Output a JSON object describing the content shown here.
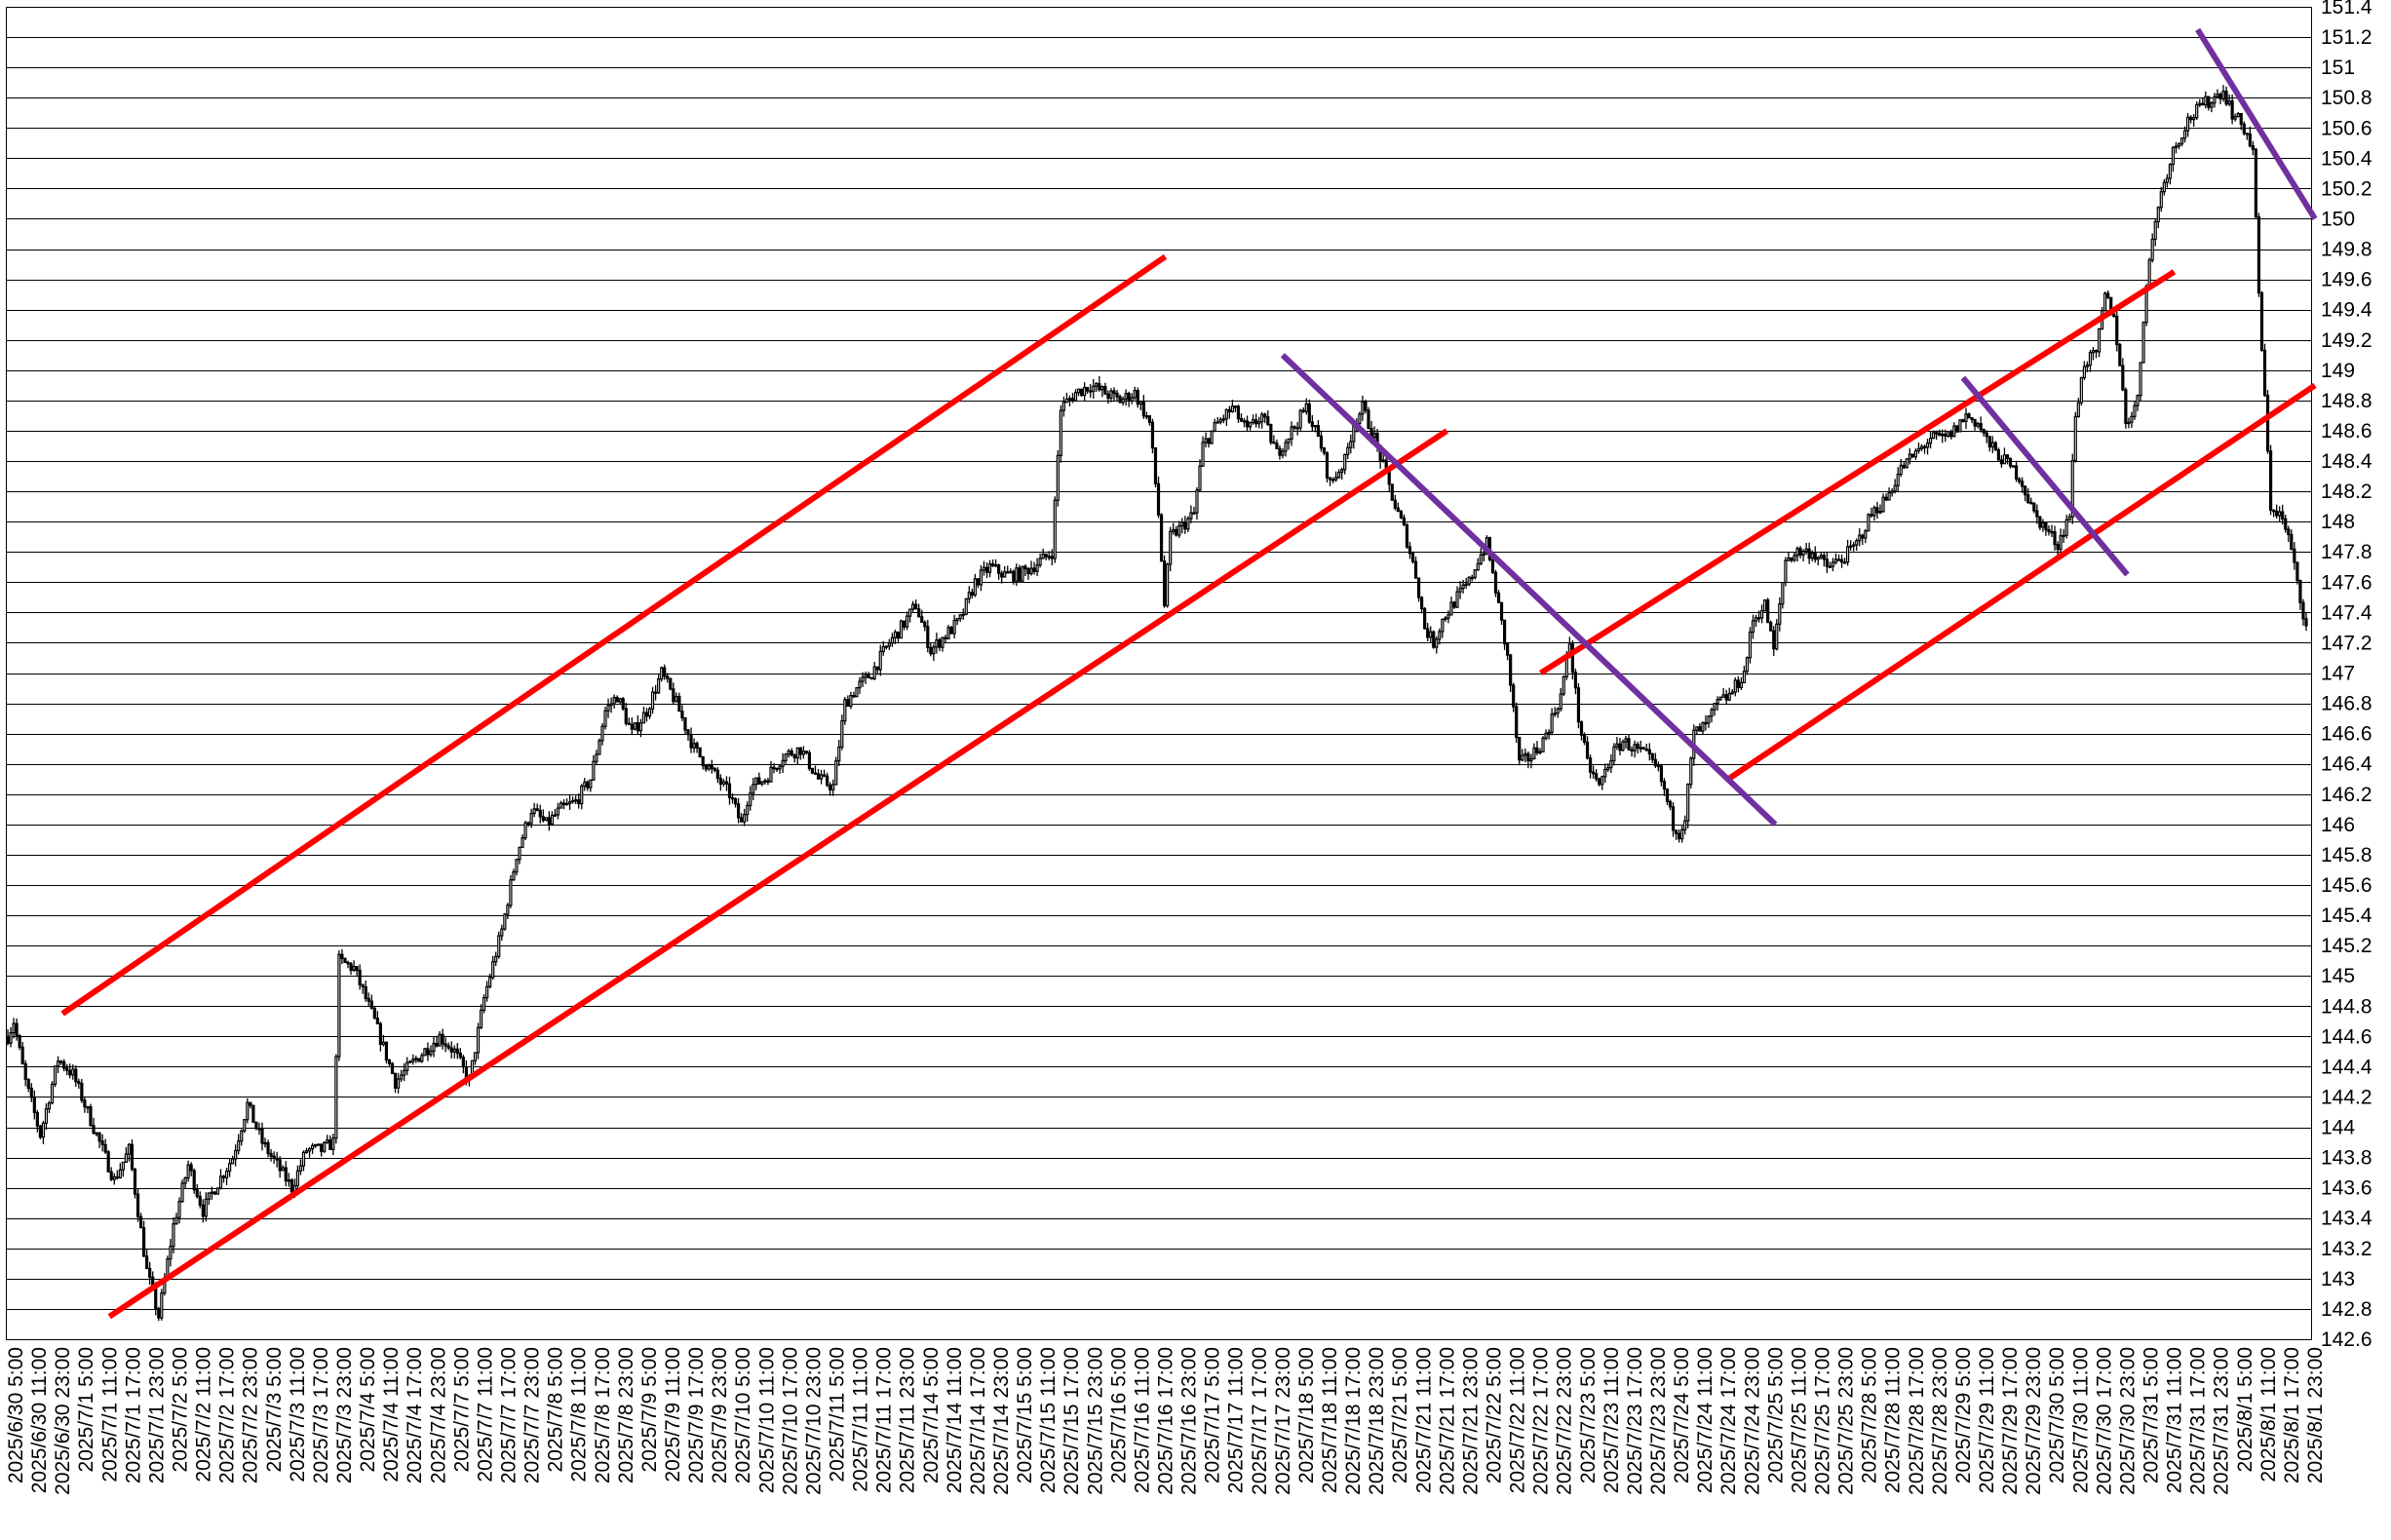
{
  "chart_data": {
    "type": "candlestick",
    "title": "",
    "xlabel": "",
    "ylabel": "",
    "ylim": [
      142.6,
      151.4
    ],
    "y_ticks": [
      "142.6",
      "142.8",
      "143",
      "143.2",
      "143.4",
      "143.6",
      "143.8",
      "144",
      "144.2",
      "144.4",
      "144.6",
      "144.8",
      "145",
      "145.2",
      "145.4",
      "145.6",
      "145.8",
      "146",
      "146.2",
      "146.4",
      "146.6",
      "146.8",
      "147",
      "147.2",
      "147.4",
      "147.6",
      "147.8",
      "148",
      "148.2",
      "148.4",
      "148.6",
      "148.8",
      "149",
      "149.2",
      "149.4",
      "149.6",
      "149.8",
      "150",
      "150.2",
      "150.4",
      "150.6",
      "150.8",
      "151",
      "151.2",
      "151.4"
    ],
    "grid": "horizontal",
    "x_ticks": [
      "2025/6/30 5:00",
      "2025/6/30 11:00",
      "2025/6/30 23:00",
      "2025/7/1 5:00",
      "2025/7/1 11:00",
      "2025/7/1 17:00",
      "2025/7/1 23:00",
      "2025/7/2 5:00",
      "2025/7/2 11:00",
      "2025/7/2 17:00",
      "2025/7/2 23:00",
      "2025/7/3 5:00",
      "2025/7/3 11:00",
      "2025/7/3 17:00",
      "2025/7/3 23:00",
      "2025/7/4 5:00",
      "2025/7/4 11:00",
      "2025/7/4 17:00",
      "2025/7/4 23:00",
      "2025/7/7 5:00",
      "2025/7/7 11:00",
      "2025/7/7 17:00",
      "2025/7/7 23:00",
      "2025/7/8 5:00",
      "2025/7/8 11:00",
      "2025/7/8 17:00",
      "2025/7/8 23:00",
      "2025/7/9 5:00",
      "2025/7/9 11:00",
      "2025/7/9 17:00",
      "2025/7/9 23:00",
      "2025/7/10 5:00",
      "2025/7/10 11:00",
      "2025/7/10 17:00",
      "2025/7/10 23:00",
      "2025/7/11 5:00",
      "2025/7/11 11:00",
      "2025/7/11 17:00",
      "2025/7/11 23:00",
      "2025/7/14 5:00",
      "2025/7/14 11:00",
      "2025/7/14 17:00",
      "2025/7/14 23:00",
      "2025/7/15 5:00",
      "2025/7/15 11:00",
      "2025/7/15 17:00",
      "2025/7/15 23:00",
      "2025/7/16 5:00",
      "2025/7/16 11:00",
      "2025/7/16 17:00",
      "2025/7/16 23:00",
      "2025/7/17 5:00",
      "2025/7/17 11:00",
      "2025/7/17 17:00",
      "2025/7/17 23:00",
      "2025/7/18 5:00",
      "2025/7/18 11:00",
      "2025/7/18 17:00",
      "2025/7/18 23:00",
      "2025/7/21 5:00",
      "2025/7/21 11:00",
      "2025/7/21 17:00",
      "2025/7/21 23:00",
      "2025/7/22 5:00",
      "2025/7/22 11:00",
      "2025/7/22 17:00",
      "2025/7/22 23:00",
      "2025/7/23 5:00",
      "2025/7/23 11:00",
      "2025/7/23 17:00",
      "2025/7/23 23:00",
      "2025/7/24 5:00",
      "2025/7/24 11:00",
      "2025/7/24 17:00",
      "2025/7/24 23:00",
      "2025/7/25 5:00",
      "2025/7/25 11:00",
      "2025/7/25 17:00",
      "2025/7/25 23:00",
      "2025/7/28 5:00",
      "2025/7/28 11:00",
      "2025/7/28 17:00",
      "2025/7/28 23:00",
      "2025/7/29 5:00",
      "2025/7/29 11:00",
      "2025/7/29 17:00",
      "2025/7/29 23:00",
      "2025/7/30 5:00",
      "2025/7/30 11:00",
      "2025/7/30 17:00",
      "2025/7/30 23:00",
      "2025/7/31 5:00",
      "2025/7/31 11:00",
      "2025/7/31 17:00",
      "2025/7/31 23:00",
      "2025/8/1 5:00",
      "2025/8/1 11:00",
      "2025/8/1 17:00",
      "2025/8/1 23:00"
    ],
    "price_path": [
      [
        0,
        144.6
      ],
      [
        2,
        144.7
      ],
      [
        6,
        144.3
      ],
      [
        11,
        143.95
      ],
      [
        17,
        144.45
      ],
      [
        22,
        144.35
      ],
      [
        30,
        143.95
      ],
      [
        36,
        143.65
      ],
      [
        41,
        143.85
      ],
      [
        47,
        143.05
      ],
      [
        51,
        142.75
      ],
      [
        56,
        143.35
      ],
      [
        61,
        143.75
      ],
      [
        66,
        143.45
      ],
      [
        70,
        143.6
      ],
      [
        76,
        143.8
      ],
      [
        81,
        144.15
      ],
      [
        86,
        143.9
      ],
      [
        91,
        143.75
      ],
      [
        96,
        143.6
      ],
      [
        101,
        143.85
      ],
      [
        106,
        143.85
      ],
      [
        110,
        143.9
      ],
      [
        112,
        145.1
      ],
      [
        117,
        145.05
      ],
      [
        124,
        144.7
      ],
      [
        131,
        144.3
      ],
      [
        138,
        144.45
      ],
      [
        146,
        144.6
      ],
      [
        151,
        144.5
      ],
      [
        156,
        144.3
      ],
      [
        161,
        144.85
      ],
      [
        167,
        145.3
      ],
      [
        172,
        145.8
      ],
      [
        177,
        146.1
      ],
      [
        182,
        146.0
      ],
      [
        187,
        146.1
      ],
      [
        192,
        146.15
      ],
      [
        197,
        146.3
      ],
      [
        202,
        146.75
      ],
      [
        206,
        146.85
      ],
      [
        211,
        146.6
      ],
      [
        216,
        146.75
      ],
      [
        221,
        147.0
      ],
      [
        226,
        146.8
      ],
      [
        232,
        146.5
      ],
      [
        238,
        146.35
      ],
      [
        244,
        146.2
      ],
      [
        248,
        146.0
      ],
      [
        251,
        146.25
      ],
      [
        256,
        146.3
      ],
      [
        262,
        146.45
      ],
      [
        268,
        146.5
      ],
      [
        274,
        146.3
      ],
      [
        279,
        146.25
      ],
      [
        283,
        146.8
      ],
      [
        287,
        146.9
      ],
      [
        292,
        147.0
      ],
      [
        298,
        147.2
      ],
      [
        302,
        147.3
      ],
      [
        307,
        147.45
      ],
      [
        312,
        147.15
      ],
      [
        317,
        147.25
      ],
      [
        322,
        147.35
      ],
      [
        327,
        147.6
      ],
      [
        332,
        147.7
      ],
      [
        337,
        147.65
      ],
      [
        342,
        147.65
      ],
      [
        350,
        147.75
      ],
      [
        353,
        147.8
      ],
      [
        356,
        148.75
      ],
      [
        361,
        148.85
      ],
      [
        366,
        148.9
      ],
      [
        371,
        148.85
      ],
      [
        376,
        148.8
      ],
      [
        381,
        148.85
      ],
      [
        386,
        148.65
      ],
      [
        389,
        148.05
      ],
      [
        391,
        147.45
      ],
      [
        393,
        147.9
      ],
      [
        396,
        147.95
      ],
      [
        401,
        148.05
      ],
      [
        404,
        148.5
      ],
      [
        409,
        148.65
      ],
      [
        414,
        148.75
      ],
      [
        419,
        148.6
      ],
      [
        424,
        148.7
      ],
      [
        429,
        148.45
      ],
      [
        434,
        148.6
      ],
      [
        439,
        148.75
      ],
      [
        444,
        148.5
      ],
      [
        447,
        148.25
      ],
      [
        452,
        148.4
      ],
      [
        455,
        148.65
      ],
      [
        458,
        148.75
      ],
      [
        462,
        148.55
      ],
      [
        466,
        148.3
      ],
      [
        469,
        148.1
      ],
      [
        472,
        147.95
      ],
      [
        476,
        147.65
      ],
      [
        479,
        147.3
      ],
      [
        482,
        147.2
      ],
      [
        485,
        147.35
      ],
      [
        490,
        147.5
      ],
      [
        494,
        147.6
      ],
      [
        497,
        147.75
      ],
      [
        500,
        147.85
      ],
      [
        503,
        147.55
      ],
      [
        507,
        147.1
      ],
      [
        509,
        146.75
      ],
      [
        511,
        146.4
      ],
      [
        515,
        146.45
      ],
      [
        519,
        146.55
      ],
      [
        522,
        146.7
      ],
      [
        525,
        146.85
      ],
      [
        528,
        147.2
      ],
      [
        531,
        146.7
      ],
      [
        534,
        146.4
      ],
      [
        538,
        146.25
      ],
      [
        542,
        146.45
      ],
      [
        546,
        146.55
      ],
      [
        550,
        146.5
      ],
      [
        554,
        146.45
      ],
      [
        558,
        146.35
      ],
      [
        561,
        146.15
      ],
      [
        563,
        146.0
      ],
      [
        565,
        145.95
      ],
      [
        567,
        146.05
      ],
      [
        570,
        146.6
      ],
      [
        574,
        146.65
      ],
      [
        578,
        146.8
      ],
      [
        582,
        146.85
      ],
      [
        587,
        147.0
      ],
      [
        590,
        147.35
      ],
      [
        594,
        147.45
      ],
      [
        597,
        147.15
      ],
      [
        601,
        147.75
      ],
      [
        605,
        147.8
      ],
      [
        610,
        147.8
      ],
      [
        615,
        147.7
      ],
      [
        620,
        147.75
      ],
      [
        625,
        147.85
      ],
      [
        630,
        148.05
      ],
      [
        635,
        148.15
      ],
      [
        640,
        148.35
      ],
      [
        645,
        148.45
      ],
      [
        650,
        148.55
      ],
      [
        655,
        148.55
      ],
      [
        658,
        148.6
      ],
      [
        662,
        148.7
      ],
      [
        666,
        148.65
      ],
      [
        670,
        148.5
      ],
      [
        675,
        148.4
      ],
      [
        680,
        148.3
      ],
      [
        685,
        148.05
      ],
      [
        689,
        147.95
      ],
      [
        693,
        147.85
      ],
      [
        697,
        148.05
      ],
      [
        699,
        148.7
      ],
      [
        702,
        149.05
      ],
      [
        706,
        149.1
      ],
      [
        709,
        149.5
      ],
      [
        712,
        149.35
      ],
      [
        714,
        149.05
      ],
      [
        716,
        148.65
      ],
      [
        720,
        148.8
      ],
      [
        723,
        149.6
      ],
      [
        727,
        150.1
      ],
      [
        732,
        150.45
      ],
      [
        737,
        150.65
      ],
      [
        742,
        150.75
      ],
      [
        746,
        150.8
      ],
      [
        749,
        150.85
      ],
      [
        752,
        150.7
      ],
      [
        756,
        150.6
      ],
      [
        759,
        150.45
      ],
      [
        761,
        149.5
      ],
      [
        763,
        148.8
      ],
      [
        765,
        148.1
      ],
      [
        768,
        148.05
      ],
      [
        771,
        147.9
      ],
      [
        773,
        147.7
      ],
      [
        775,
        147.5
      ],
      [
        777,
        147.3
      ]
    ],
    "candles": 778,
    "trend_lines": [
      {
        "color": "#ff0000",
        "from": [
          "2025/6/30 23:00",
          144.75
        ],
        "to": [
          "2025/7/16 17:00",
          149.75
        ]
      },
      {
        "color": "#ff0000",
        "from": [
          "2025/7/1 11:00",
          142.75
        ],
        "to": [
          "2025/7/21 17:00",
          148.6
        ]
      },
      {
        "color": "#ff0000",
        "from": [
          "2025/7/22 17:00",
          147.0
        ],
        "to": [
          "2025/7/31 11:00",
          149.65
        ]
      },
      {
        "color": "#ff0000",
        "from": [
          "2025/7/24 17:00",
          146.3
        ],
        "to": [
          "2025/8/1 23:00",
          148.9
        ]
      },
      {
        "color": "#7030a0",
        "from": [
          "2025/7/17 23:00",
          149.1
        ],
        "to": [
          "2025/7/25 5:00",
          146.0
        ]
      },
      {
        "color": "#7030a0",
        "from": [
          "2025/7/29 5:00",
          148.95
        ],
        "to": [
          "2025/7/30 23:00",
          147.65
        ]
      },
      {
        "color": "#7030a0",
        "from": [
          "2025/7/31 17:00",
          151.25
        ],
        "to": [
          "2025/8/1 23:00",
          150.0
        ]
      }
    ],
    "colors": {
      "up_candle": "#ffffff",
      "down_candle": "#000000",
      "outline": "#000000",
      "support_resistance": "#ff0000",
      "channel_lines": "#7030a0"
    }
  }
}
